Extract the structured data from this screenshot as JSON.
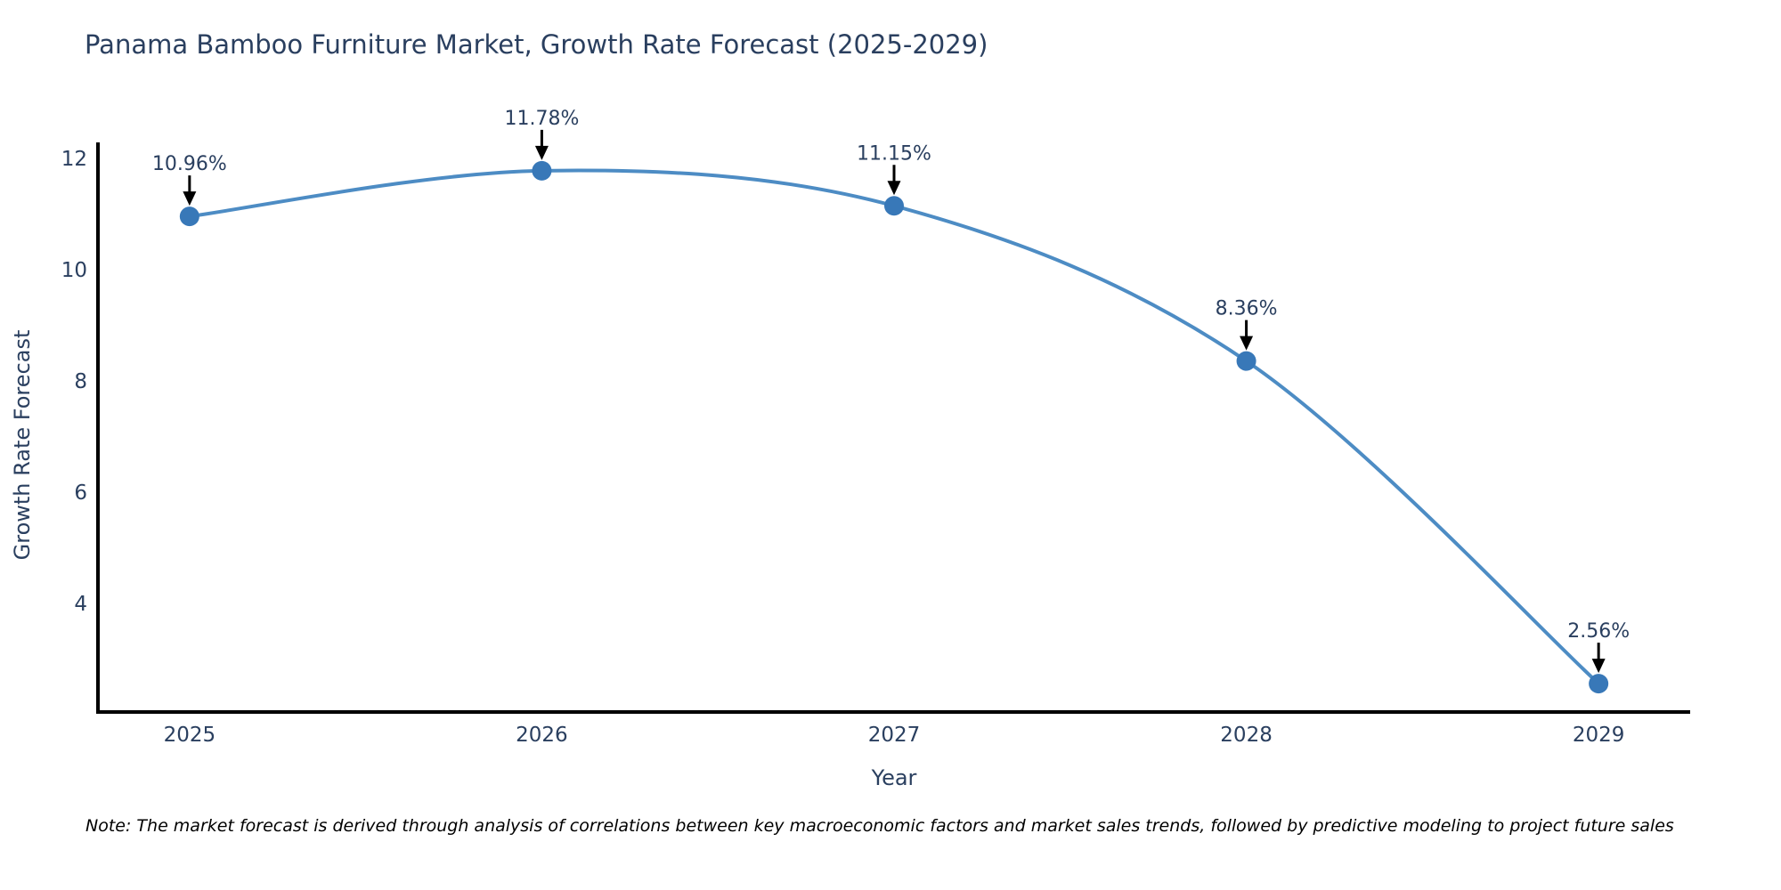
{
  "title": "Panama Bamboo Furniture Market, Growth Rate Forecast (2025-2029)",
  "note": "Note: The market forecast is derived through analysis of correlations between key macroeconomic factors and market sales trends, followed by predictive modeling to project future sales",
  "chart_data": {
    "type": "line",
    "title": "Panama Bamboo Furniture Market, Growth Rate Forecast (2025-2029)",
    "xlabel": "Year",
    "ylabel": "Growth Rate Forecast",
    "x": [
      2025,
      2026,
      2027,
      2028,
      2029
    ],
    "series": [
      {
        "name": "Growth Rate Forecast",
        "values": [
          10.96,
          11.78,
          11.15,
          8.36,
          2.56
        ]
      }
    ],
    "point_labels": [
      "10.96%",
      "11.78%",
      "11.15%",
      "8.36%",
      "2.56%"
    ],
    "x_ticks": [
      "2025",
      "2026",
      "2027",
      "2028",
      "2029"
    ],
    "y_ticks": [
      4,
      6,
      8,
      10,
      12
    ],
    "x_range": [
      2024.74,
      2029.26
    ],
    "y_range": [
      2.05,
      12.29
    ],
    "grid": false,
    "legend_position": "none",
    "line_shape": "spline",
    "colors": {
      "line": "#4d8cc4",
      "marker": "#3878b8",
      "axis": "#000000",
      "text": "#2a3f5f",
      "annotation_arrow": "#000000",
      "background": "#ffffff"
    }
  }
}
